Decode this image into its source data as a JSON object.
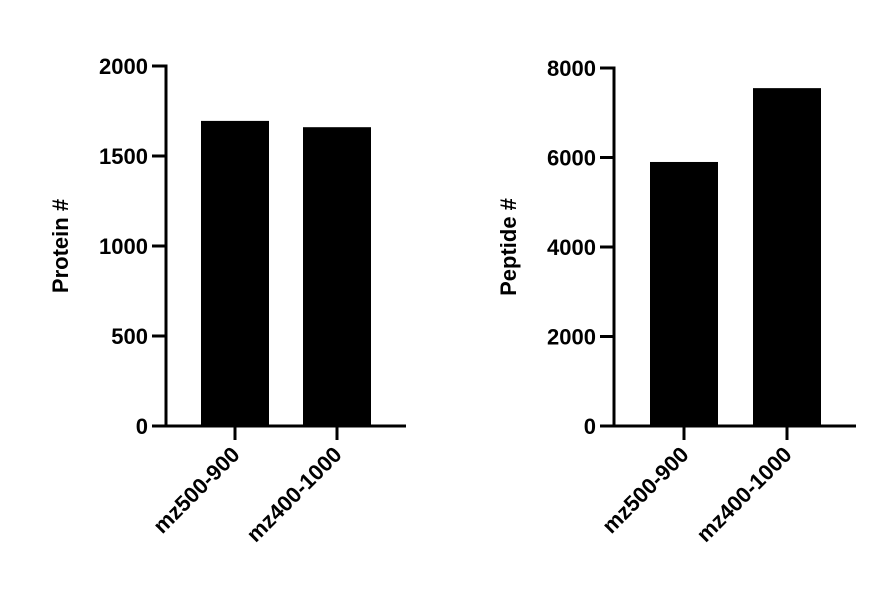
{
  "chart_data": [
    {
      "type": "bar",
      "ylabel": "Protein #",
      "categories": [
        "mz500-900",
        "mz400-1000"
      ],
      "values": [
        1695,
        1660
      ],
      "color": "#000000",
      "ylim": [
        0,
        2000
      ],
      "yticks": [
        0,
        500,
        1000,
        1500,
        2000
      ]
    },
    {
      "type": "bar",
      "ylabel": "Peptide #",
      "categories": [
        "mz500-900",
        "mz400-1000"
      ],
      "values": [
        5900,
        7550
      ],
      "color": "#000000",
      "ylim": [
        0,
        8000
      ],
      "yticks": [
        0,
        2000,
        4000,
        6000,
        8000
      ]
    }
  ]
}
